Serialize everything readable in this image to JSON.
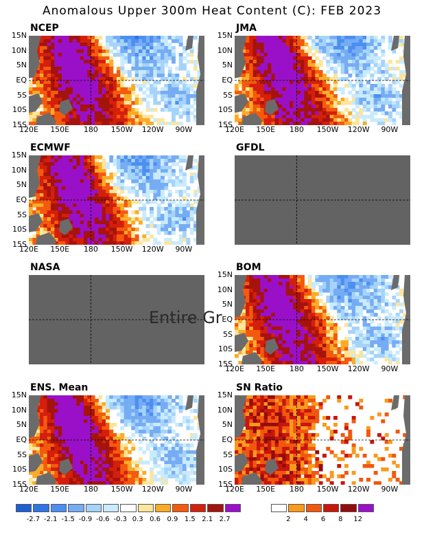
{
  "title": "Anomalous Upper 300m Heat Content (C): FEB 2023",
  "ghost_text": "Entire Gr",
  "panels": [
    {
      "id": "ncep",
      "label": "NCEP",
      "status": "data"
    },
    {
      "id": "jma",
      "label": "JMA",
      "status": "data"
    },
    {
      "id": "ecmwf",
      "label": "ECMWF",
      "status": "data"
    },
    {
      "id": "gfdl",
      "label": "GFDL",
      "status": "missing"
    },
    {
      "id": "nasa",
      "label": "NASA",
      "status": "missing"
    },
    {
      "id": "bom",
      "label": "BOM",
      "status": "data"
    },
    {
      "id": "ens",
      "label": "ENS. Mean",
      "status": "data"
    },
    {
      "id": "sn",
      "label": "SN Ratio",
      "status": "data"
    }
  ],
  "chart_data": {
    "type": "heatmap",
    "x_ticks": [
      "120E",
      "150E",
      "180",
      "150W",
      "120W",
      "90W"
    ],
    "y_ticks": [
      "15N",
      "10N",
      "5N",
      "EQ",
      "5S",
      "10S",
      "15S"
    ],
    "xlim_deg_east": [
      120,
      290
    ],
    "ylim_deg": [
      -15,
      15
    ],
    "reference_lines": [
      "EQ",
      "180"
    ],
    "anomaly_scale": {
      "labels": [
        "-2.7",
        "-2.1",
        "-1.5",
        "-0.9",
        "-0.6",
        "-0.3",
        "0.3",
        "0.6",
        "0.9",
        "1.5",
        "2.1",
        "2.7"
      ],
      "colors": [
        "#1e5fd2",
        "#2f74e6",
        "#4d8ff0",
        "#76acf4",
        "#a6d3fa",
        "#c9ebfd",
        "#ffffff",
        "#fde59a",
        "#fbab26",
        "#f45a0e",
        "#d41f0c",
        "#a5130d",
        "#9a10c8"
      ]
    },
    "sn_scale": {
      "labels": [
        "2",
        "4",
        "6",
        "8",
        "12"
      ],
      "colors": [
        "#ffffff",
        "#f99a1c",
        "#f2570f",
        "#c8160b",
        "#950c0f",
        "#9a10c8"
      ]
    },
    "land_color": "#6b6b6b",
    "missing_color": "#636363"
  }
}
